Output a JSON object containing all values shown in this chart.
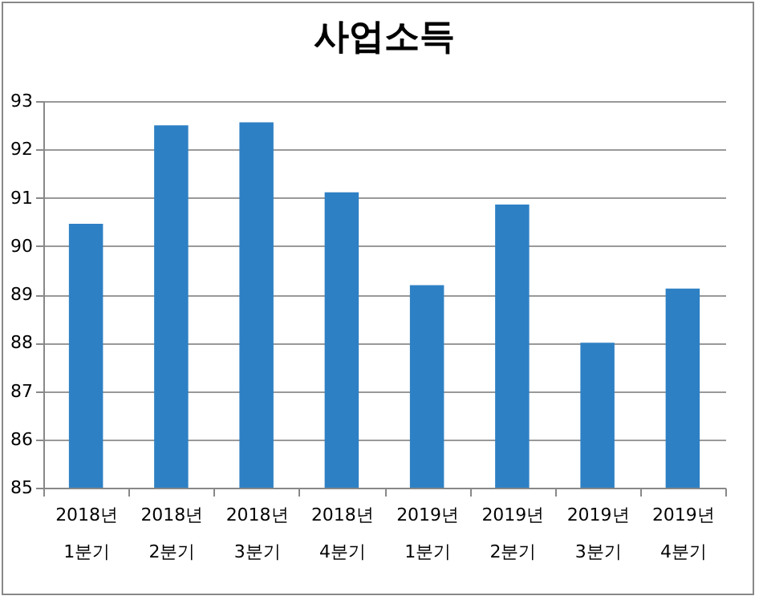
{
  "chart_data": {
    "type": "bar",
    "title": "사업소득",
    "categories": [
      "2018년 1분기",
      "2018년 2분기",
      "2018년 3분기",
      "2018년 4분기",
      "2019년 1분기",
      "2019년 2분기",
      "2019년 3분기",
      "2019년 4분기"
    ],
    "values": [
      90.46,
      92.5,
      92.56,
      91.11,
      89.19,
      90.86,
      88.0,
      89.12
    ],
    "color": "#2e80c4",
    "ylim": [
      85,
      93
    ],
    "yticks": [
      85,
      86,
      87,
      88,
      89,
      90,
      91,
      92,
      93
    ],
    "grid": "y"
  }
}
